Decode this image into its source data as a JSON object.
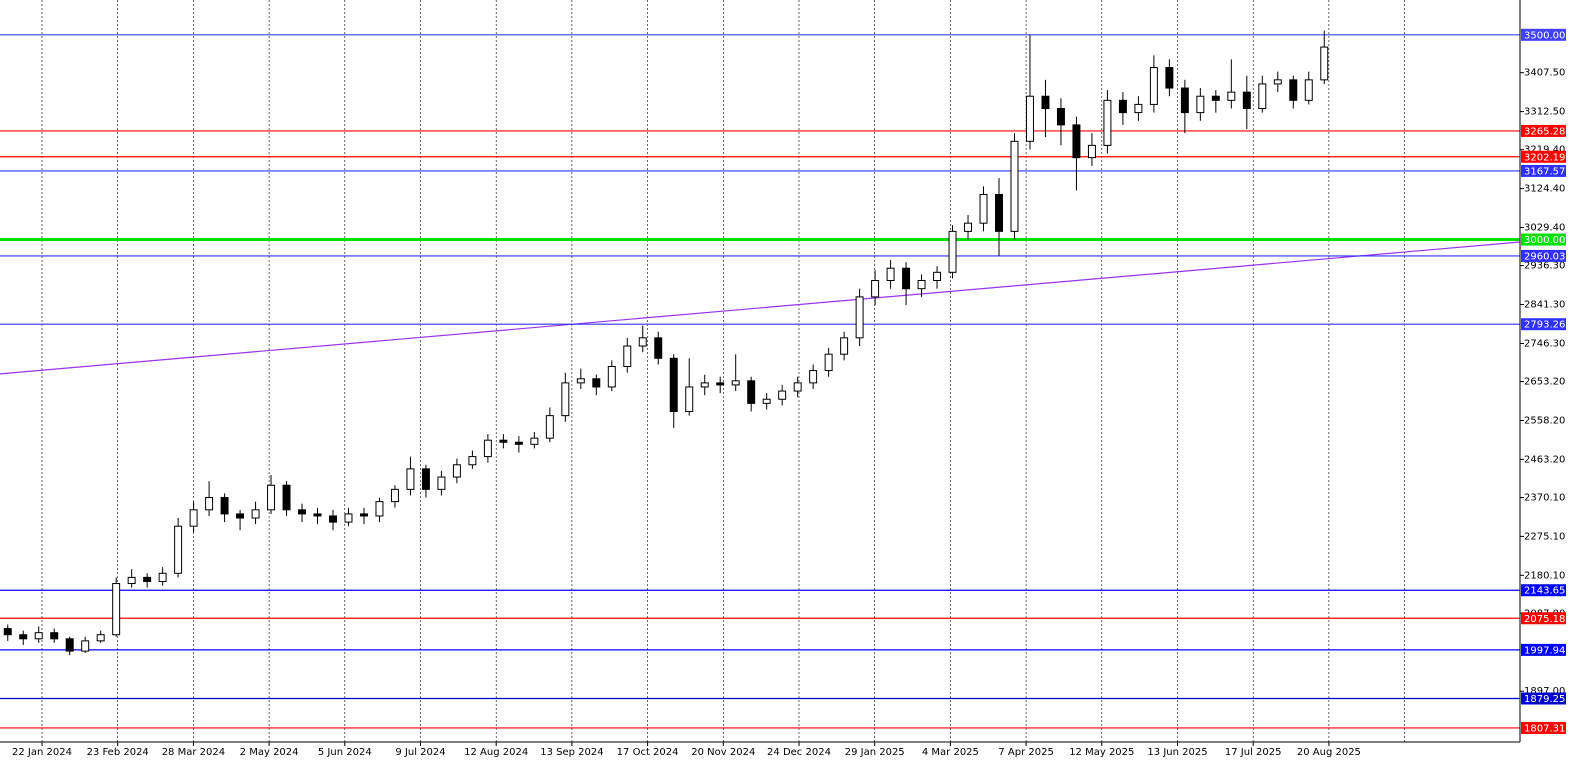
{
  "chart_data": {
    "type": "candlestick",
    "ylim": [
      1773,
      3585
    ],
    "yticks": [
      {
        "value": 3407.5,
        "label": "3407.50"
      },
      {
        "value": 3312.5,
        "label": "3312.50"
      },
      {
        "value": 3219.4,
        "label": "3219.40"
      },
      {
        "value": 3124.4,
        "label": "3124.40"
      },
      {
        "value": 3029.4,
        "label": "3029.40"
      },
      {
        "value": 2936.3,
        "label": "2936.30"
      },
      {
        "value": 2841.3,
        "label": "2841.30"
      },
      {
        "value": 2746.3,
        "label": "2746.30"
      },
      {
        "value": 2653.2,
        "label": "2653.20"
      },
      {
        "value": 2558.2,
        "label": "2558.20"
      },
      {
        "value": 2463.2,
        "label": "2463.20"
      },
      {
        "value": 2370.1,
        "label": "2370.10"
      },
      {
        "value": 2275.1,
        "label": "2275.10"
      },
      {
        "value": 2180.1,
        "label": "2180.10"
      },
      {
        "value": 2087.0,
        "label": "2087.00"
      },
      {
        "value": 1897.0,
        "label": "1897.00"
      }
    ],
    "x_labels": [
      "22 Jan 2024",
      "23 Feb 2024",
      "28 Mar 2024",
      "2 May 2024",
      "5 Jun 2024",
      "9 Jul 2024",
      "12 Aug 2024",
      "13 Sep 2024",
      "17 Oct 2024",
      "20 Nov 2024",
      "24 Dec 2024",
      "29 Jan 2025",
      "4 Mar 2025",
      "7 Apr 2025",
      "12 May 2025",
      "13 Jun 2025",
      "17 Jul 2025",
      "20 Aug 2025"
    ],
    "grid": true,
    "candles": {
      "open": [
        2050,
        2035,
        2025,
        2040,
        2025,
        1995,
        2020,
        2035,
        2160,
        2175,
        2165,
        2185,
        2300,
        2340,
        2370,
        2330,
        2320,
        2340,
        2400,
        2340,
        2330,
        2325,
        2310,
        2330,
        2325,
        2360,
        2390,
        2440,
        2390,
        2420,
        2450,
        2470,
        2510,
        2505,
        2500,
        2515,
        2570,
        2650,
        2660,
        2640,
        2690,
        2740,
        2760,
        2710,
        2580,
        2640,
        2650,
        2645,
        2655,
        2600,
        2610,
        2630,
        2650,
        2680,
        2720,
        2760,
        2860,
        2900,
        2930,
        2880,
        2900,
        2920,
        3020,
        3040,
        3110,
        3020,
        3240,
        3350,
        3320,
        3280,
        3200,
        3230,
        3340,
        3310,
        3330,
        3420,
        3370,
        3310,
        3350,
        3340,
        3360,
        3320,
        3380,
        3390,
        3340,
        3390
      ],
      "high": [
        2060,
        2045,
        2055,
        2050,
        2030,
        2030,
        2045,
        2175,
        2195,
        2185,
        2200,
        2320,
        2360,
        2410,
        2380,
        2340,
        2360,
        2425,
        2410,
        2355,
        2345,
        2340,
        2345,
        2345,
        2370,
        2400,
        2470,
        2450,
        2435,
        2465,
        2485,
        2525,
        2525,
        2520,
        2530,
        2590,
        2675,
        2685,
        2670,
        2705,
        2760,
        2790,
        2775,
        2720,
        2710,
        2670,
        2665,
        2720,
        2665,
        2625,
        2645,
        2665,
        2695,
        2735,
        2775,
        2880,
        2925,
        2950,
        2945,
        2915,
        2935,
        3035,
        3060,
        3130,
        3150,
        3260,
        3500,
        3390,
        3345,
        3300,
        3260,
        3365,
        3360,
        3350,
        3450,
        3440,
        3390,
        3370,
        3365,
        3440,
        3400,
        3400,
        3410,
        3400,
        3410,
        3510
      ],
      "low": [
        2020,
        2010,
        2015,
        2015,
        1985,
        1990,
        2015,
        2030,
        2150,
        2150,
        2155,
        2175,
        2285,
        2325,
        2310,
        2290,
        2305,
        2330,
        2325,
        2310,
        2305,
        2290,
        2300,
        2305,
        2310,
        2345,
        2375,
        2370,
        2375,
        2405,
        2440,
        2455,
        2490,
        2480,
        2490,
        2505,
        2555,
        2635,
        2620,
        2630,
        2675,
        2725,
        2695,
        2540,
        2570,
        2620,
        2625,
        2630,
        2580,
        2585,
        2595,
        2615,
        2635,
        2665,
        2705,
        2740,
        2840,
        2880,
        2840,
        2860,
        2880,
        2905,
        3000,
        3020,
        2960,
        3000,
        3220,
        3250,
        3230,
        3120,
        3180,
        3210,
        3280,
        3290,
        3310,
        3350,
        3260,
        3290,
        3310,
        3320,
        3270,
        3310,
        3360,
        3320,
        3330,
        3380
      ],
      "close": [
        2035,
        2025,
        2040,
        2025,
        1995,
        2020,
        2035,
        2160,
        2175,
        2165,
        2185,
        2300,
        2340,
        2370,
        2330,
        2320,
        2340,
        2400,
        2340,
        2330,
        2325,
        2310,
        2330,
        2325,
        2360,
        2390,
        2440,
        2390,
        2420,
        2450,
        2470,
        2510,
        2505,
        2500,
        2515,
        2570,
        2650,
        2660,
        2640,
        2690,
        2740,
        2760,
        2710,
        2580,
        2640,
        2650,
        2645,
        2655,
        2600,
        2610,
        2630,
        2650,
        2680,
        2720,
        2760,
        2860,
        2900,
        2930,
        2880,
        2900,
        2920,
        3020,
        3040,
        3110,
        3020,
        3240,
        3350,
        3320,
        3280,
        3200,
        3230,
        3340,
        3310,
        3330,
        3420,
        3370,
        3310,
        3350,
        3340,
        3360,
        3320,
        3380,
        3390,
        3340,
        3390,
        3470
      ]
    },
    "levels": [
      {
        "value": 3500,
        "label": "3500.00",
        "color": "#4040ff"
      },
      {
        "value": 3265.28,
        "label": "3265.28",
        "color": "#ff0000"
      },
      {
        "value": 3202.19,
        "label": "3202.19",
        "color": "#ff0000"
      },
      {
        "value": 3167.57,
        "label": "3167.57",
        "color": "#3030ff"
      },
      {
        "value": 3000,
        "label": "3000.00",
        "color": "#00e000"
      },
      {
        "value": 2960.03,
        "label": "2960.03",
        "color": "#3030ff"
      },
      {
        "value": 2793.26,
        "label": "2793.26",
        "color": "#3030ff"
      },
      {
        "value": 2143.65,
        "label": "2143.65",
        "color": "#0000ff"
      },
      {
        "value": 2075.18,
        "label": "2075.18",
        "color": "#ff0000"
      },
      {
        "value": 1997.94,
        "label": "1997.94",
        "color": "#0000ff"
      },
      {
        "value": 1879.25,
        "label": "1879.25",
        "color": "#0000cc"
      },
      {
        "value": 1807.31,
        "label": "1807.31",
        "color": "#ff0000"
      }
    ],
    "trendline": {
      "start": 2672,
      "end": 2994,
      "color": "#9933ee"
    }
  }
}
